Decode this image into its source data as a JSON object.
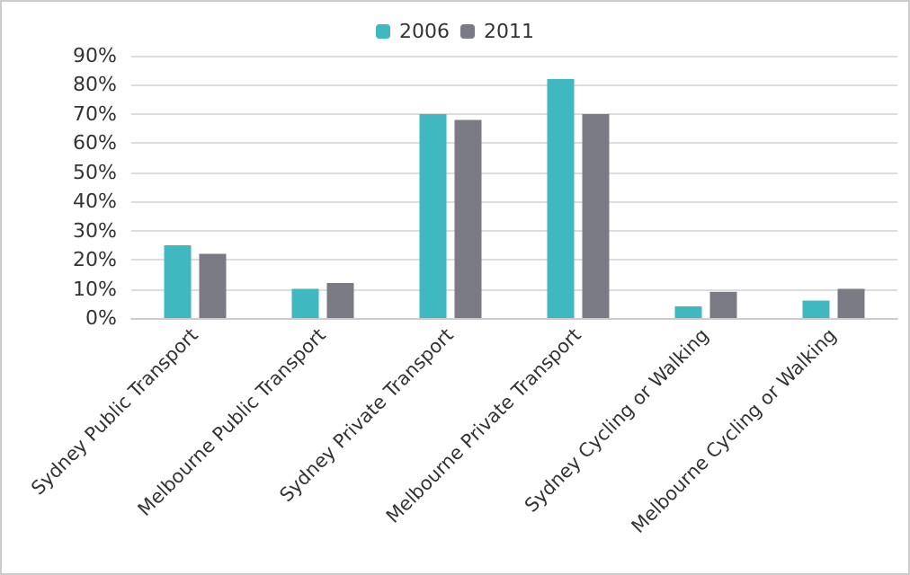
{
  "chart_data": {
    "type": "bar",
    "categories": [
      "Sydney Public Transport",
      "Melbourne Public Transport",
      "Sydney Private Transport",
      "Melbourne Private Transport",
      "Sydney Cycling or Walking",
      "Melbourne Cycling or Walking"
    ],
    "series": [
      {
        "name": "2006",
        "color": "#3fb8bf",
        "values": [
          25,
          10,
          70,
          82,
          4,
          6
        ]
      },
      {
        "name": "2011",
        "color": "#7a7a84",
        "values": [
          22,
          12,
          68,
          70,
          9,
          10
        ]
      }
    ],
    "ylim": [
      0,
      90
    ],
    "yticks": [
      {
        "value": 0,
        "label": "0%"
      },
      {
        "value": 10,
        "label": "10%"
      },
      {
        "value": 20,
        "label": "20%"
      },
      {
        "value": 30,
        "label": "30%"
      },
      {
        "value": 40,
        "label": "40%"
      },
      {
        "value": 50,
        "label": "50%"
      },
      {
        "value": 60,
        "label": "60%"
      },
      {
        "value": 70,
        "label": "70%"
      },
      {
        "value": 80,
        "label": "80%"
      },
      {
        "value": 90,
        "label": "90%"
      }
    ],
    "grid": "y",
    "legend": "top"
  }
}
